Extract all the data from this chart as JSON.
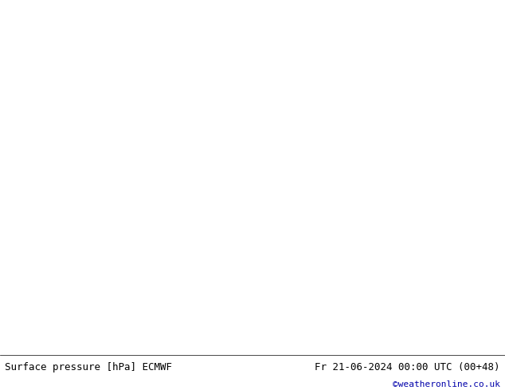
{
  "title_left": "Surface pressure [hPa] ECMWF",
  "title_right": "Fr 21-06-2024 00:00 UTC (00+48)",
  "watermark": "©weatheronline.co.uk",
  "bg_color": "#e8e8e8",
  "land_color": "#b8e8b8",
  "sea_color": "#dce8f0",
  "contour_color_blue": "#0000cc",
  "contour_color_red": "#cc0000",
  "contour_color_black": "#111111",
  "label_fontsize": 7,
  "footer_fontsize": 9,
  "watermark_fontsize": 8,
  "watermark_color": "#0000aa",
  "figsize": [
    6.34,
    4.9
  ],
  "dpi": 100,
  "map_extent": [
    -25,
    55,
    -40,
    42
  ]
}
